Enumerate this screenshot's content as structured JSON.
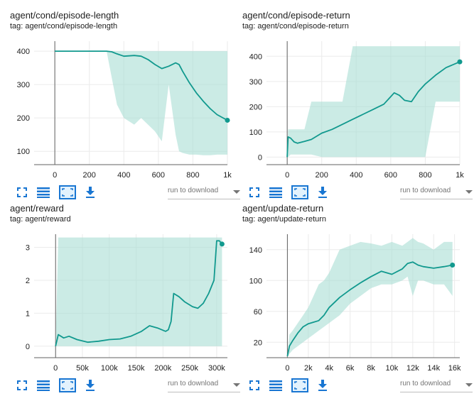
{
  "cards": [
    {
      "title": "agent/cond/episode-length",
      "tag": "tag: agent/cond/episode-length",
      "run_label": "run to download"
    },
    {
      "title": "agent/cond/episode-return",
      "tag": "tag: agent/cond/episode-return",
      "run_label": "run to download"
    },
    {
      "title": "agent/reward",
      "tag": "tag: agent/reward",
      "run_label": "run to download"
    },
    {
      "title": "agent/update-return",
      "tag": "tag: agent/update-return",
      "run_label": "run to download"
    }
  ],
  "icons": [
    "fullscreen-icon",
    "data-table-icon",
    "fit-domain-icon",
    "download-icon"
  ],
  "colors": {
    "line": "#11998e",
    "band": "#a8ddd3",
    "axis": "#616161",
    "grid": "#ebebeb"
  },
  "chart_data": [
    {
      "type": "line",
      "title": "agent/cond/episode-length",
      "xlim": [
        -120,
        1000
      ],
      "ylim": [
        60,
        430
      ],
      "xticks": [
        0,
        200,
        400,
        600,
        800,
        1000
      ],
      "xticklabels": [
        "0",
        "200",
        "400",
        "600",
        "800",
        "1k"
      ],
      "yticks": [
        100,
        200,
        300,
        400
      ],
      "yticklabels": [
        "100",
        "200",
        "300",
        "400"
      ],
      "grid": true,
      "series": [
        {
          "x": [
            0,
            100,
            200,
            300,
            330,
            360,
            400,
            460,
            500,
            540,
            580,
            620,
            660,
            700,
            720,
            740,
            780,
            820,
            860,
            900,
            940,
            1000
          ],
          "y": [
            400,
            400,
            400,
            400,
            398,
            392,
            385,
            387,
            385,
            375,
            360,
            348,
            355,
            365,
            360,
            340,
            305,
            275,
            250,
            228,
            210,
            193
          ],
          "band_low": [
            400,
            400,
            400,
            400,
            320,
            240,
            200,
            180,
            200,
            180,
            160,
            130,
            300,
            150,
            100,
            95,
            90,
            90,
            88,
            88,
            90,
            90
          ],
          "band_high": [
            400,
            400,
            400,
            400,
            400,
            400,
            400,
            400,
            400,
            400,
            400,
            400,
            400,
            400,
            400,
            400,
            400,
            400,
            400,
            400,
            400,
            400
          ]
        }
      ]
    },
    {
      "type": "line",
      "title": "agent/cond/episode-return",
      "xlim": [
        -120,
        1000
      ],
      "ylim": [
        -30,
        460
      ],
      "xticks": [
        0,
        200,
        400,
        600,
        800,
        1000
      ],
      "xticklabels": [
        "0",
        "200",
        "400",
        "600",
        "800",
        "1k"
      ],
      "yticks": [
        0,
        100,
        200,
        300,
        400
      ],
      "yticklabels": [
        "0",
        "100",
        "200",
        "300",
        "400"
      ],
      "grid": true,
      "series": [
        {
          "x": [
            0,
            5,
            20,
            40,
            60,
            100,
            140,
            200,
            260,
            320,
            380,
            440,
            500,
            560,
            600,
            620,
            650,
            680,
            720,
            760,
            800,
            860,
            920,
            1000
          ],
          "y": [
            0,
            80,
            75,
            60,
            55,
            62,
            70,
            95,
            110,
            130,
            150,
            170,
            190,
            210,
            240,
            255,
            245,
            225,
            220,
            260,
            290,
            325,
            355,
            378
          ],
          "band_low": [
            0,
            0,
            10,
            10,
            10,
            10,
            10,
            0,
            0,
            0,
            0,
            0,
            0,
            0,
            0,
            0,
            0,
            0,
            0,
            0,
            0,
            220,
            220,
            220
          ],
          "band_high": [
            0,
            110,
            110,
            110,
            110,
            110,
            220,
            220,
            220,
            220,
            440,
            440,
            440,
            440,
            440,
            440,
            440,
            440,
            440,
            440,
            440,
            440,
            440,
            440
          ]
        }
      ]
    },
    {
      "type": "line",
      "title": "agent/reward",
      "xlim": [
        -40000,
        320000
      ],
      "ylim": [
        -0.35,
        3.4
      ],
      "xticks": [
        0,
        50000,
        100000,
        150000,
        200000,
        250000,
        300000
      ],
      "xticklabels": [
        "0",
        "50k",
        "100k",
        "150k",
        "200k",
        "250k",
        "300k"
      ],
      "yticks": [
        0,
        1,
        2,
        3
      ],
      "yticklabels": [
        "0",
        "1",
        "2",
        "3"
      ],
      "grid": true,
      "series": [
        {
          "x": [
            0,
            5000,
            15000,
            25000,
            40000,
            60000,
            80000,
            100000,
            120000,
            140000,
            160000,
            175000,
            190000,
            205000,
            210000,
            215000,
            220000,
            230000,
            240000,
            255000,
            265000,
            275000,
            285000,
            295000,
            300000,
            305000,
            310000
          ],
          "y": [
            0,
            0.35,
            0.25,
            0.3,
            0.2,
            0.12,
            0.15,
            0.2,
            0.22,
            0.3,
            0.45,
            0.62,
            0.55,
            0.45,
            0.5,
            0.75,
            1.6,
            1.5,
            1.35,
            1.2,
            1.15,
            1.3,
            1.6,
            2.0,
            3.2,
            3.2,
            3.1
          ],
          "band_low": [
            0,
            0,
            0,
            0,
            0,
            0,
            0,
            0,
            0,
            0,
            0,
            0,
            0,
            0,
            0,
            0,
            0,
            0,
            0,
            0,
            0,
            0,
            0,
            0,
            0,
            0,
            0
          ],
          "band_high": [
            0,
            3.3,
            3.3,
            3.3,
            3.3,
            3.3,
            3.3,
            3.3,
            3.3,
            3.3,
            3.3,
            3.3,
            3.3,
            3.3,
            3.3,
            3.3,
            3.3,
            3.3,
            3.3,
            3.3,
            3.3,
            3.3,
            3.3,
            3.3,
            3.3,
            3.3,
            3.3
          ]
        }
      ]
    },
    {
      "type": "line",
      "title": "agent/update-return",
      "xlim": [
        -2000,
        16500
      ],
      "ylim": [
        0,
        160
      ],
      "xticks": [
        0,
        2000,
        4000,
        6000,
        8000,
        10000,
        12000,
        14000,
        16000
      ],
      "xticklabels": [
        "0",
        "2k",
        "4k",
        "6k",
        "8k",
        "10k",
        "12k",
        "14k",
        "16k"
      ],
      "yticks": [
        20,
        60,
        100,
        140
      ],
      "yticklabels": [
        "20",
        "60",
        "100",
        "140"
      ],
      "grid": true,
      "series": [
        {
          "x": [
            0,
            200,
            500,
            1000,
            1500,
            2000,
            2500,
            3000,
            3500,
            4000,
            5000,
            6000,
            7000,
            8000,
            9000,
            10000,
            11000,
            11500,
            12000,
            12500,
            13000,
            14000,
            15000,
            15800
          ],
          "y": [
            2,
            15,
            22,
            32,
            40,
            44,
            46,
            48,
            55,
            65,
            78,
            88,
            97,
            105,
            112,
            108,
            115,
            122,
            124,
            120,
            118,
            116,
            118,
            120
          ],
          "band_low": [
            0,
            5,
            10,
            15,
            20,
            25,
            30,
            35,
            40,
            45,
            55,
            70,
            80,
            90,
            95,
            95,
            100,
            105,
            80,
            100,
            100,
            95,
            95,
            80
          ],
          "band_high": [
            5,
            30,
            35,
            45,
            55,
            65,
            80,
            95,
            100,
            110,
            140,
            145,
            150,
            148,
            145,
            150,
            145,
            150,
            155,
            150,
            148,
            140,
            150,
            150
          ]
        }
      ]
    }
  ]
}
